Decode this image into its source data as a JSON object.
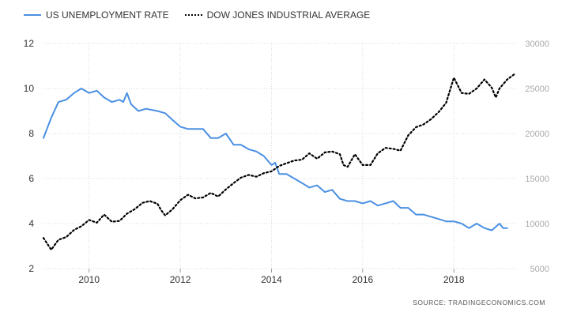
{
  "legend": {
    "series1": "US UNEMPLOYMENT RATE",
    "series2": "DOW JONES INDUSTRIAL AVERAGE"
  },
  "source": "SOURCE:  TRADINGECONOMICS.COM",
  "colors": {
    "unemployment": "#4a90e2",
    "dow": "#000000",
    "grid": "#d9d9d9",
    "tick": "#333333",
    "right_tick": "#aaaaaa"
  },
  "chart_data": {
    "type": "line",
    "x_range": [
      2009.0,
      2019.4
    ],
    "x_ticks": [
      {
        "value": 2010,
        "label": "2010"
      },
      {
        "value": 2012,
        "label": "2012"
      },
      {
        "value": 2014,
        "label": "2014"
      },
      {
        "value": 2016,
        "label": "2016"
      },
      {
        "value": 2018,
        "label": "2018"
      }
    ],
    "y_left": {
      "range": [
        2,
        12
      ],
      "ticks": [
        "2",
        "4",
        "6",
        "8",
        "10",
        "12"
      ]
    },
    "y_right": {
      "range": [
        5000,
        30000
      ],
      "ticks": [
        "5000",
        "10000",
        "15000",
        "20000",
        "25000",
        "30000"
      ]
    },
    "grid": true,
    "legend_position": "top-left",
    "series": [
      {
        "name": "US UNEMPLOYMENT RATE",
        "axis": "left",
        "style": "solid",
        "points": [
          [
            2009.0,
            7.8
          ],
          [
            2009.17,
            8.7
          ],
          [
            2009.33,
            9.4
          ],
          [
            2009.5,
            9.5
          ],
          [
            2009.67,
            9.8
          ],
          [
            2009.83,
            10.0
          ],
          [
            2010.0,
            9.8
          ],
          [
            2010.17,
            9.9
          ],
          [
            2010.33,
            9.6
          ],
          [
            2010.5,
            9.4
          ],
          [
            2010.67,
            9.5
          ],
          [
            2010.75,
            9.4
          ],
          [
            2010.83,
            9.8
          ],
          [
            2010.92,
            9.3
          ],
          [
            2011.08,
            9.0
          ],
          [
            2011.25,
            9.1
          ],
          [
            2011.5,
            9.0
          ],
          [
            2011.67,
            8.9
          ],
          [
            2011.83,
            8.6
          ],
          [
            2012.0,
            8.3
          ],
          [
            2012.17,
            8.2
          ],
          [
            2012.5,
            8.2
          ],
          [
            2012.67,
            7.8
          ],
          [
            2012.83,
            7.8
          ],
          [
            2013.0,
            8.0
          ],
          [
            2013.17,
            7.5
          ],
          [
            2013.33,
            7.5
          ],
          [
            2013.5,
            7.3
          ],
          [
            2013.67,
            7.2
          ],
          [
            2013.83,
            7.0
          ],
          [
            2014.0,
            6.6
          ],
          [
            2014.08,
            6.7
          ],
          [
            2014.17,
            6.2
          ],
          [
            2014.33,
            6.2
          ],
          [
            2014.5,
            6.0
          ],
          [
            2014.67,
            5.8
          ],
          [
            2014.83,
            5.6
          ],
          [
            2015.0,
            5.7
          ],
          [
            2015.17,
            5.4
          ],
          [
            2015.33,
            5.5
          ],
          [
            2015.5,
            5.1
          ],
          [
            2015.67,
            5.0
          ],
          [
            2015.83,
            5.0
          ],
          [
            2016.0,
            4.9
          ],
          [
            2016.17,
            5.0
          ],
          [
            2016.33,
            4.8
          ],
          [
            2016.5,
            4.9
          ],
          [
            2016.67,
            5.0
          ],
          [
            2016.83,
            4.7
          ],
          [
            2017.0,
            4.7
          ],
          [
            2017.17,
            4.4
          ],
          [
            2017.33,
            4.4
          ],
          [
            2017.5,
            4.3
          ],
          [
            2017.67,
            4.2
          ],
          [
            2017.83,
            4.1
          ],
          [
            2018.0,
            4.1
          ],
          [
            2018.17,
            4.0
          ],
          [
            2018.33,
            3.8
          ],
          [
            2018.5,
            4.0
          ],
          [
            2018.67,
            3.8
          ],
          [
            2018.83,
            3.7
          ],
          [
            2019.0,
            4.0
          ],
          [
            2019.08,
            3.8
          ],
          [
            2019.17,
            3.8
          ]
        ]
      },
      {
        "name": "DOW JONES INDUSTRIAL AVERAGE",
        "axis": "right",
        "style": "dotted",
        "points": [
          [
            2009.0,
            8400
          ],
          [
            2009.17,
            7100
          ],
          [
            2009.33,
            8200
          ],
          [
            2009.5,
            8500
          ],
          [
            2009.67,
            9300
          ],
          [
            2009.83,
            9700
          ],
          [
            2010.0,
            10400
          ],
          [
            2010.17,
            10100
          ],
          [
            2010.33,
            11000
          ],
          [
            2010.5,
            10200
          ],
          [
            2010.67,
            10300
          ],
          [
            2010.83,
            11100
          ],
          [
            2011.0,
            11600
          ],
          [
            2011.17,
            12300
          ],
          [
            2011.33,
            12500
          ],
          [
            2011.5,
            12200
          ],
          [
            2011.58,
            11500
          ],
          [
            2011.67,
            10900
          ],
          [
            2011.83,
            11600
          ],
          [
            2012.0,
            12600
          ],
          [
            2012.17,
            13200
          ],
          [
            2012.33,
            12800
          ],
          [
            2012.5,
            12900
          ],
          [
            2012.67,
            13400
          ],
          [
            2012.83,
            13000
          ],
          [
            2013.0,
            13800
          ],
          [
            2013.17,
            14500
          ],
          [
            2013.33,
            15100
          ],
          [
            2013.5,
            15400
          ],
          [
            2013.67,
            15200
          ],
          [
            2013.83,
            15600
          ],
          [
            2014.0,
            15800
          ],
          [
            2014.17,
            16400
          ],
          [
            2014.33,
            16700
          ],
          [
            2014.5,
            17000
          ],
          [
            2014.67,
            17100
          ],
          [
            2014.83,
            17800
          ],
          [
            2015.0,
            17200
          ],
          [
            2015.17,
            17900
          ],
          [
            2015.33,
            18000
          ],
          [
            2015.5,
            17700
          ],
          [
            2015.58,
            16500
          ],
          [
            2015.67,
            16300
          ],
          [
            2015.83,
            17700
          ],
          [
            2016.0,
            16500
          ],
          [
            2016.17,
            16500
          ],
          [
            2016.33,
            17800
          ],
          [
            2016.5,
            18400
          ],
          [
            2016.67,
            18300
          ],
          [
            2016.83,
            18100
          ],
          [
            2017.0,
            19800
          ],
          [
            2017.17,
            20700
          ],
          [
            2017.33,
            21000
          ],
          [
            2017.5,
            21600
          ],
          [
            2017.67,
            22400
          ],
          [
            2017.83,
            23400
          ],
          [
            2018.0,
            26200
          ],
          [
            2018.17,
            24500
          ],
          [
            2018.33,
            24400
          ],
          [
            2018.5,
            25000
          ],
          [
            2018.67,
            26000
          ],
          [
            2018.83,
            25100
          ],
          [
            2018.92,
            24000
          ],
          [
            2019.0,
            25000
          ],
          [
            2019.17,
            26000
          ],
          [
            2019.33,
            26600
          ]
        ]
      }
    ]
  }
}
